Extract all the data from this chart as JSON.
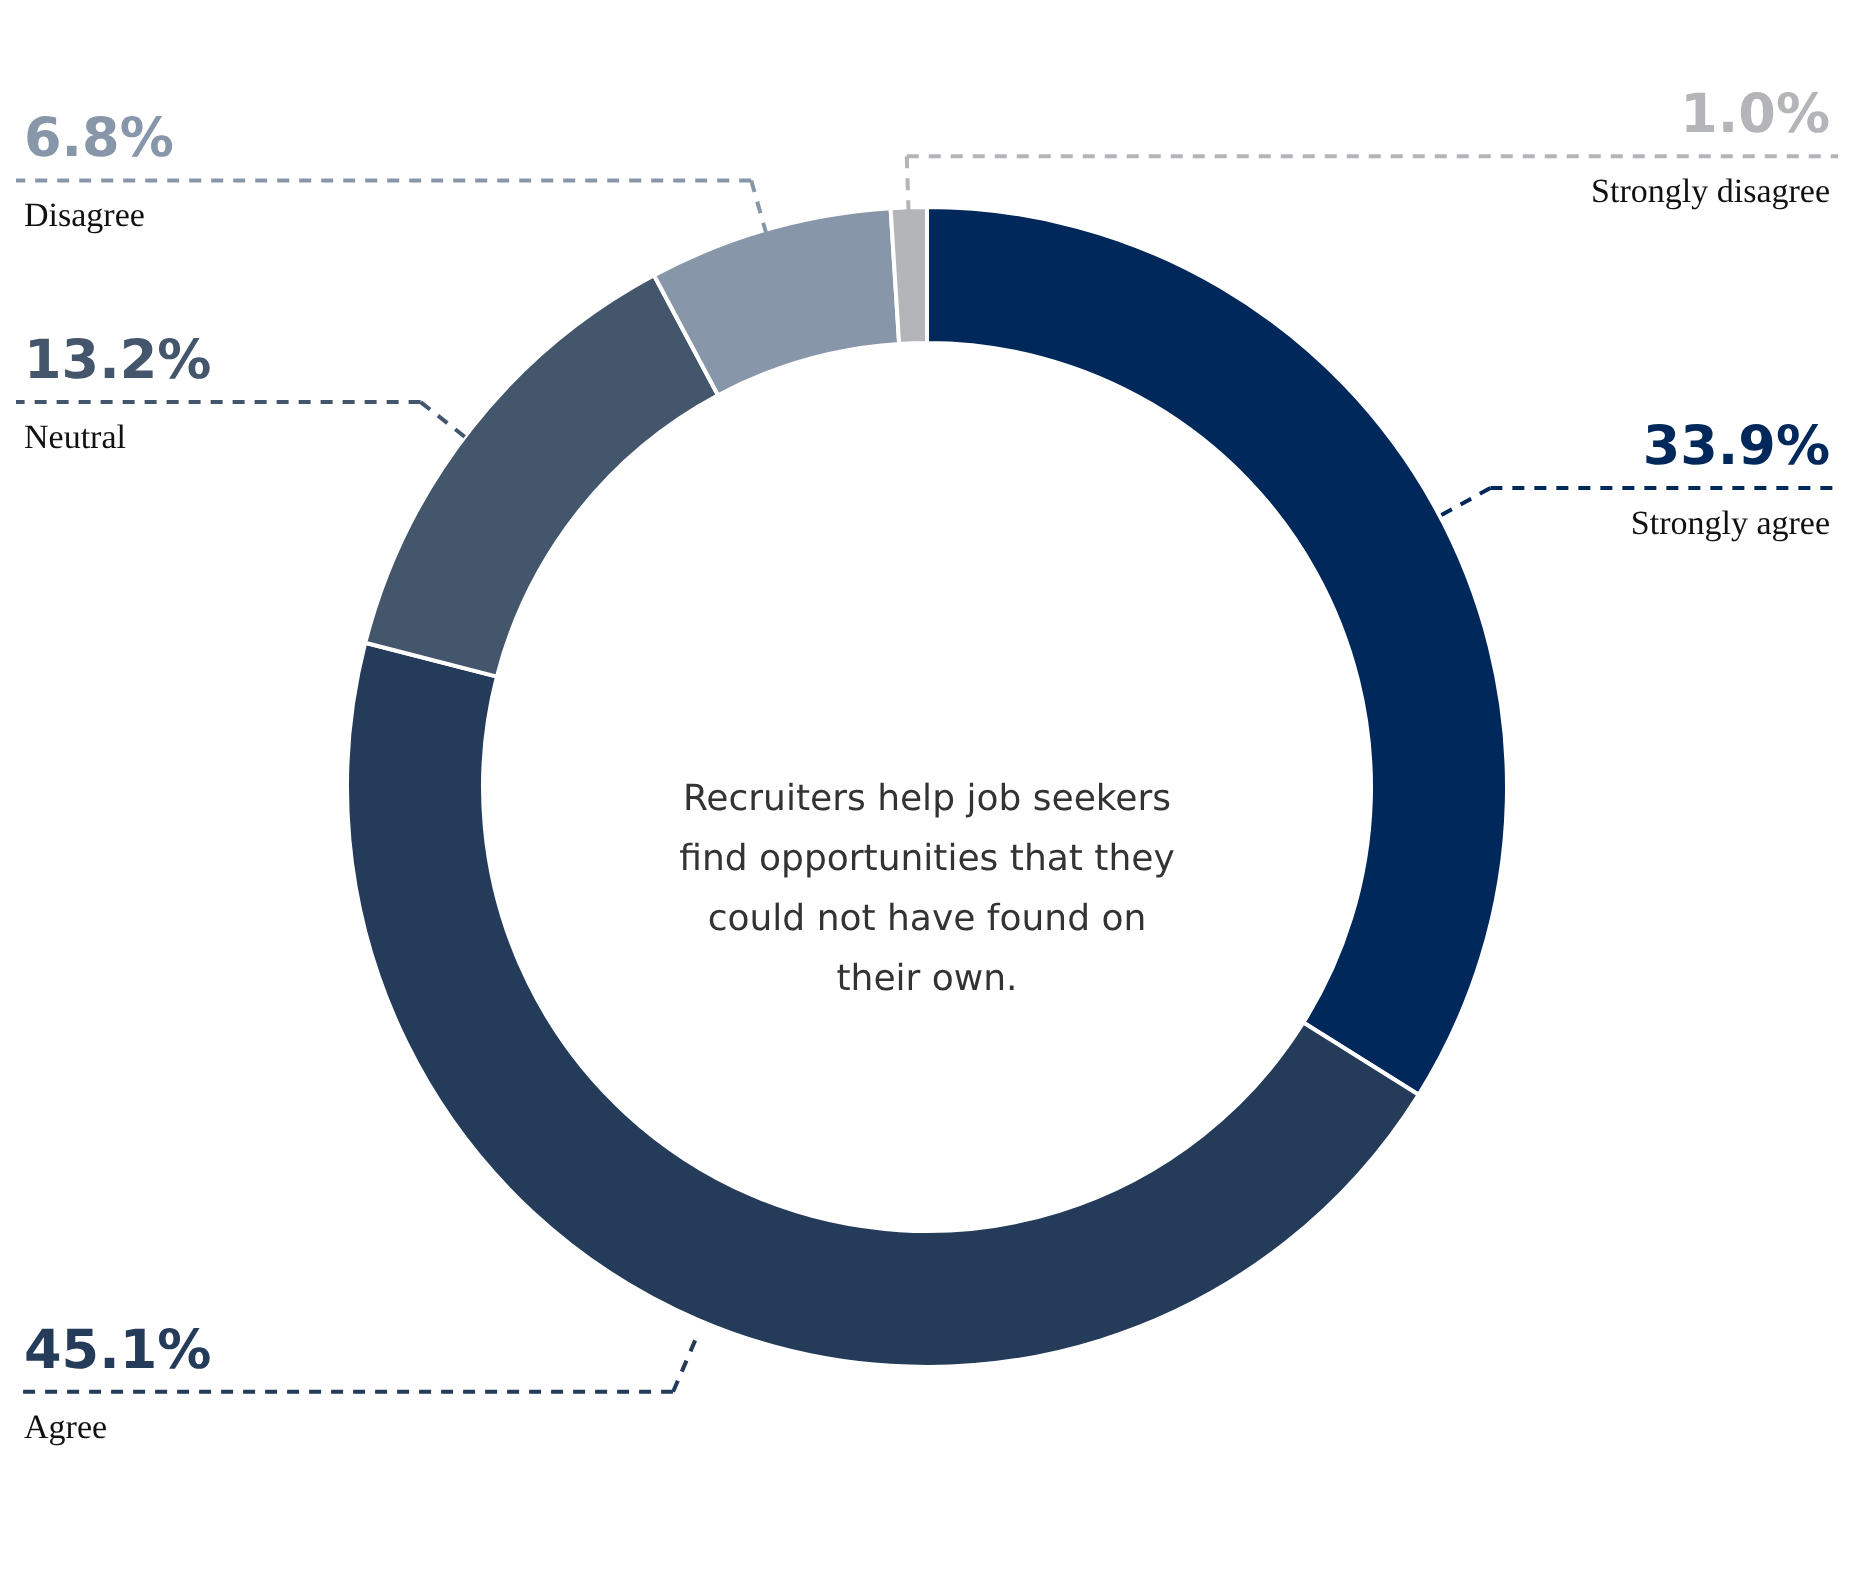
{
  "chart_data": {
    "type": "donut",
    "title": "Recruiters help job seekers find opportunities that they could not have found on their own.",
    "categories": [
      "Strongly agree",
      "Agree",
      "Neutral",
      "Disagree",
      "Strongly disagree"
    ],
    "values": [
      33.9,
      45.1,
      13.2,
      6.8,
      1.0
    ],
    "colors": [
      "#00285a",
      "#243c5a",
      "#43566b",
      "#8797a9",
      "#b3b5b9"
    ],
    "value_labels": [
      "33.9%",
      "45.1%",
      "13.2%",
      "6.8%",
      "1.0%"
    ]
  }
}
